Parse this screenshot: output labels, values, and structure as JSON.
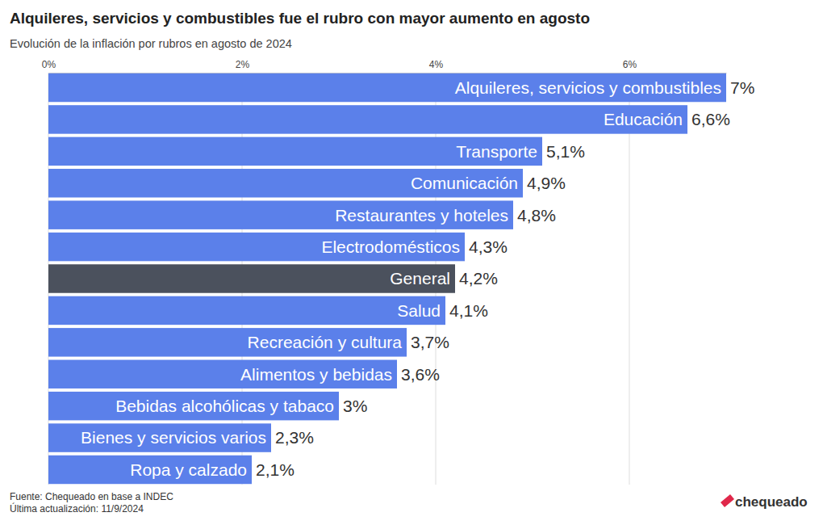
{
  "chart_data": {
    "type": "bar",
    "title": "Alquileres, servicios y combustibles fue el rubro con mayor aumento en agosto",
    "subtitle": "Evolución de la inflación por rubros en agosto de 2024",
    "categories": [
      "Alquileres, servicios y combustibles",
      "Educación",
      "Transporte",
      "Comunicación",
      "Restaurantes y hoteles",
      "Electrodomésticos",
      "General",
      "Salud",
      "Recreación y cultura",
      "Alimentos y bebidas",
      "Bebidas alcohólicas y tabaco",
      "Bienes y servicios varios",
      "Ropa y calzado"
    ],
    "values": [
      7,
      6.6,
      5.1,
      4.9,
      4.8,
      4.3,
      4.2,
      4.1,
      3.7,
      3.6,
      3,
      2.3,
      2.1
    ],
    "value_labels": [
      "7%",
      "6,6%",
      "5,1%",
      "4,9%",
      "4,8%",
      "4,3%",
      "4,2%",
      "4,1%",
      "3,7%",
      "3,6%",
      "3%",
      "2,3%",
      "2,1%"
    ],
    "colors": [
      "#5b80ea",
      "#5b80ea",
      "#5b80ea",
      "#5b80ea",
      "#5b80ea",
      "#5b80ea",
      "#4b515d",
      "#5b80ea",
      "#5b80ea",
      "#5b80ea",
      "#5b80ea",
      "#5b80ea",
      "#5b80ea"
    ],
    "orientation": "horizontal",
    "xlim": [
      0,
      7
    ],
    "xticks": [
      {
        "value": 0,
        "label": "0%"
      },
      {
        "value": 2,
        "label": "2%"
      },
      {
        "value": 4,
        "label": "4%"
      },
      {
        "value": 6,
        "label": "6%"
      }
    ],
    "grid": true,
    "data_labels": true,
    "notes": [
      "Fuente: Chequeado en base a INDEC",
      "Última actualización: 11/9/2024"
    ],
    "brand": "chequeado"
  }
}
